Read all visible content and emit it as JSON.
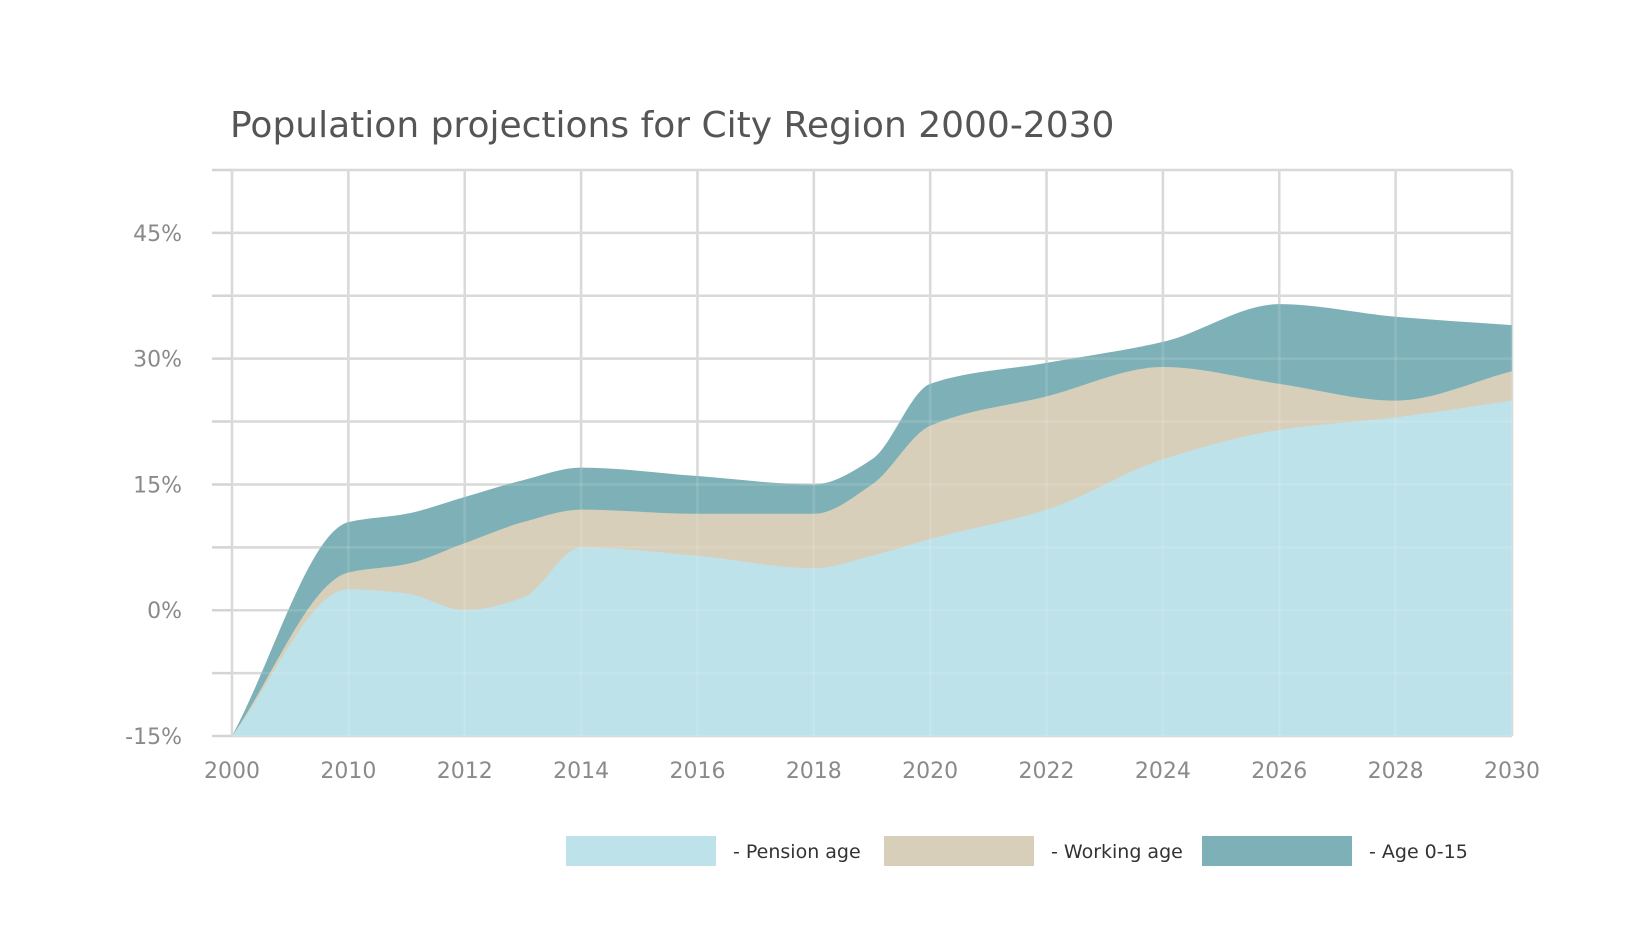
{
  "chart_data": {
    "type": "area",
    "stacked": true,
    "title": "Population projections for City Region 2000-2030",
    "xlabel": "",
    "ylabel": "",
    "x": [
      2000,
      2010,
      2011,
      2012,
      2013,
      2014,
      2016,
      2018,
      2019,
      2020,
      2022,
      2024,
      2026,
      2028,
      2030
    ],
    "x_ticks": [
      "2000",
      "2010",
      "2012",
      "2014",
      "2016",
      "2018",
      "2020",
      "2022",
      "2024",
      "2026",
      "2028",
      "2030"
    ],
    "y_ticks": [
      {
        "value": 45,
        "label": "45%"
      },
      {
        "value": 30,
        "label": "30%"
      },
      {
        "value": 15,
        "label": "15%"
      },
      {
        "value": 0,
        "label": "0%"
      },
      {
        "value": -15,
        "label": "-15%"
      }
    ],
    "ylim": [
      -15,
      52.5
    ],
    "grid": true,
    "series": [
      {
        "name": "Pension age",
        "legend_label": "- Pension age",
        "color": "#bde2ea",
        "cumulative": [
          -15,
          2.5,
          2,
          0,
          1.5,
          7.5,
          6.5,
          5,
          6.5,
          8.5,
          12,
          18,
          21.5,
          23,
          25
        ]
      },
      {
        "name": "Working age",
        "legend_label": "- Working age",
        "color": "#d8cfba",
        "cumulative": [
          -15,
          4.5,
          5.5,
          8,
          10.5,
          12,
          11.5,
          11.5,
          15,
          22,
          25.5,
          29,
          27,
          25,
          28.5
        ]
      },
      {
        "name": "Age 0-15",
        "legend_label": "- Age 0-15",
        "color": "#7eb1b7",
        "cumulative": [
          -15,
          10.5,
          11.5,
          13.5,
          15.5,
          17,
          16,
          15,
          18,
          27,
          29.5,
          32,
          36.5,
          35,
          34
        ]
      }
    ]
  }
}
